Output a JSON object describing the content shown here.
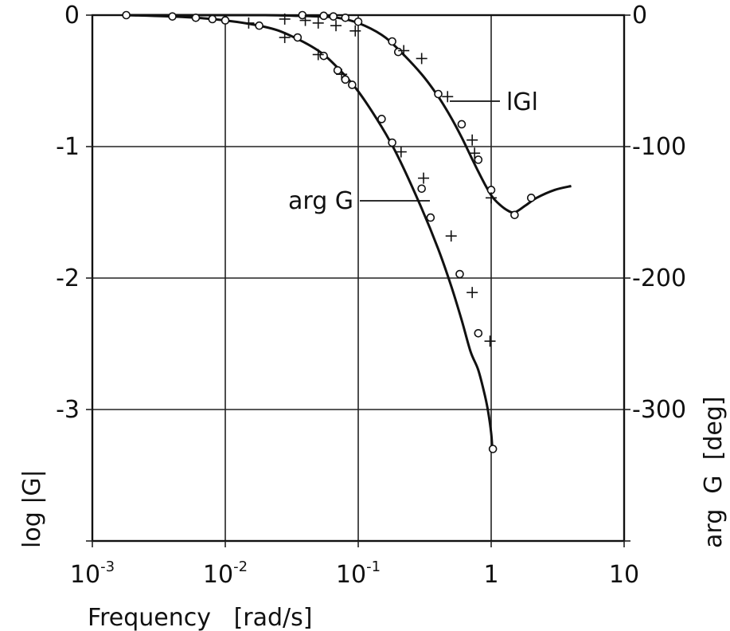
{
  "chart_data": {
    "type": "line",
    "title": "",
    "xlabel": "Frequency   [rad/s]",
    "ylabel_left": "log |G|",
    "ylabel_right": "arg  G  [deg]",
    "x_scale": "log",
    "xlim": [
      0.001,
      10
    ],
    "ylim_left": [
      -4,
      0
    ],
    "ylim_right": [
      -400,
      0
    ],
    "grid": true,
    "x_ticks": [
      {
        "value": 0.001,
        "base": "10",
        "exp": "-3"
      },
      {
        "value": 0.01,
        "base": "10",
        "exp": "-2"
      },
      {
        "value": 0.1,
        "base": "10",
        "exp": "-1"
      },
      {
        "value": 1,
        "base": "1",
        "exp": ""
      },
      {
        "value": 10,
        "base": "10",
        "exp": ""
      }
    ],
    "y_ticks_left": [
      "0",
      "-1",
      "-2",
      "-3"
    ],
    "y_ticks_right": [
      "0",
      "-100",
      "-200",
      "-300"
    ],
    "annotations": {
      "mag": "lGl",
      "phase": "arg G"
    },
    "series": [
      {
        "name": "lGl",
        "axis": "left",
        "curve": {
          "x": [
            0.0018,
            0.005,
            0.01,
            0.02,
            0.035,
            0.05,
            0.07,
            0.1,
            0.15,
            0.2,
            0.3,
            0.4,
            0.5,
            0.6,
            0.7,
            0.8,
            0.9,
            1.0,
            1.1,
            1.3,
            1.5,
            1.8,
            2.2,
            3.0,
            4.0
          ],
          "y": [
            0.0,
            0.0,
            0.0,
            0.0,
            -0.005,
            -0.01,
            -0.02,
            -0.06,
            -0.15,
            -0.26,
            -0.45,
            -0.62,
            -0.78,
            -0.93,
            -1.07,
            -1.19,
            -1.29,
            -1.37,
            -1.42,
            -1.48,
            -1.5,
            -1.45,
            -1.39,
            -1.33,
            -1.3
          ]
        },
        "fit_points": {
          "x": [
            0.038,
            0.055,
            0.065,
            0.08,
            0.1,
            0.18,
            0.2,
            0.4,
            0.6,
            0.8,
            1.0,
            1.5,
            2.0
          ],
          "y": [
            0.0,
            -0.005,
            -0.01,
            -0.02,
            -0.05,
            -0.2,
            -0.28,
            -0.6,
            -0.83,
            -1.1,
            -1.33,
            -1.52,
            -1.39
          ]
        },
        "measured_points": {
          "x": [
            0.028,
            0.04,
            0.05,
            0.068,
            0.095,
            0.22,
            0.3,
            0.47,
            0.72,
            0.75,
            1.0
          ],
          "y": [
            -0.03,
            -0.04,
            -0.06,
            -0.08,
            -0.12,
            -0.27,
            -0.33,
            -0.62,
            -0.95,
            -1.05,
            -1.39
          ]
        }
      },
      {
        "name": "arg G",
        "axis": "right",
        "curve": {
          "x": [
            0.0018,
            0.005,
            0.01,
            0.02,
            0.03,
            0.05,
            0.07,
            0.1,
            0.15,
            0.2,
            0.3,
            0.4,
            0.5,
            0.6,
            0.7,
            0.8,
            0.9,
            0.95,
            1.0,
            1.02
          ],
          "y": [
            0,
            -1.5,
            -4,
            -9,
            -15,
            -27,
            -40,
            -58,
            -85,
            -108,
            -147,
            -178,
            -206,
            -232,
            -256,
            -270,
            -290,
            -302,
            -318,
            -330
          ]
        },
        "fit_points": {
          "x": [
            0.0018,
            0.004,
            0.006,
            0.008,
            0.01,
            0.018,
            0.035,
            0.055,
            0.07,
            0.08,
            0.09,
            0.15,
            0.18,
            0.3,
            0.35,
            0.58,
            0.8,
            1.03
          ],
          "y": [
            0,
            -1,
            -2,
            -3,
            -4,
            -8,
            -17,
            -31,
            -42,
            -49,
            -53,
            -79,
            -97,
            -132,
            -154,
            -197,
            -242,
            -330
          ]
        },
        "measured_points": {
          "x": [
            0.015,
            0.028,
            0.05,
            0.075,
            0.21,
            0.31,
            0.5,
            0.72,
            0.98
          ],
          "y": [
            -6,
            -17,
            -30,
            -45,
            -104,
            -124,
            -168,
            -211,
            -248
          ]
        }
      }
    ]
  }
}
